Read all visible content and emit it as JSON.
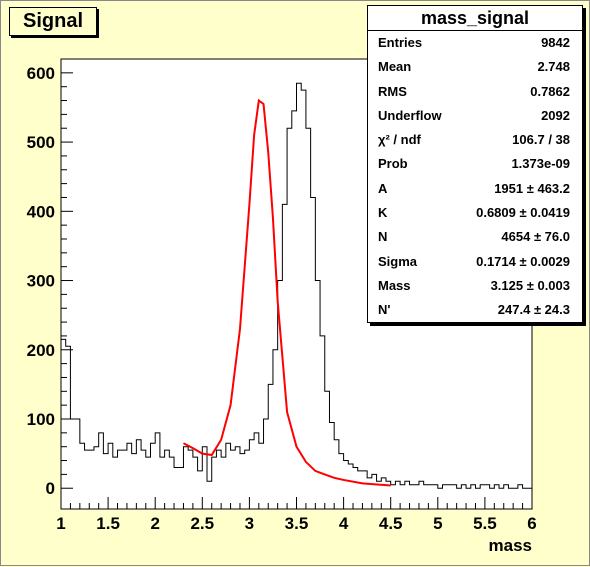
{
  "window": {
    "title": "Signal"
  },
  "chart_data": {
    "type": "histogram",
    "xlabel": "mass",
    "ylabel": "",
    "xlim": [
      1,
      6
    ],
    "ylim": [
      -30,
      620
    ],
    "x_ticks": [
      "1",
      "1.5",
      "2",
      "2.5",
      "3",
      "3.5",
      "4",
      "4.5",
      "5",
      "5.5",
      "6"
    ],
    "y_ticks": [
      "0",
      "100",
      "200",
      "300",
      "400",
      "500",
      "600"
    ],
    "bin_width": 0.05,
    "histogram_counts": [
      215,
      205,
      100,
      100,
      65,
      55,
      55,
      60,
      80,
      50,
      65,
      45,
      55,
      55,
      65,
      50,
      70,
      55,
      45,
      65,
      80,
      45,
      55,
      45,
      30,
      30,
      60,
      55,
      45,
      25,
      60,
      10,
      45,
      55,
      45,
      65,
      55,
      60,
      50,
      55,
      70,
      80,
      65,
      100,
      150,
      200,
      300,
      410,
      520,
      545,
      585,
      575,
      520,
      420,
      300,
      220,
      140,
      95,
      70,
      50,
      40,
      35,
      30,
      25,
      25,
      15,
      20,
      10,
      15,
      10,
      5,
      10,
      5,
      10,
      5,
      5,
      10,
      5,
      5,
      5,
      0,
      5,
      5,
      5,
      0,
      5,
      0,
      5,
      0,
      5,
      5,
      0,
      5,
      0,
      5,
      0,
      0,
      5,
      0,
      0
    ],
    "fit_curve": {
      "name": "fit",
      "color": "#ff0000",
      "x": [
        2.3,
        2.4,
        2.5,
        2.6,
        2.7,
        2.8,
        2.9,
        3.0,
        3.05,
        3.1,
        3.15,
        3.2,
        3.25,
        3.3,
        3.4,
        3.5,
        3.6,
        3.7,
        3.8,
        3.9,
        4.0,
        4.2,
        4.5
      ],
      "y": [
        65,
        58,
        50,
        48,
        70,
        120,
        230,
        410,
        510,
        560,
        555,
        485,
        390,
        270,
        110,
        60,
        38,
        25,
        20,
        15,
        12,
        7,
        4
      ]
    }
  },
  "stats": {
    "title": "mass_signal",
    "rows": [
      {
        "label": "Entries",
        "value": "9842"
      },
      {
        "label": "Mean",
        "value": "2.748"
      },
      {
        "label": "RMS",
        "value": "0.7862"
      },
      {
        "label": "Underflow",
        "value": "2092"
      },
      {
        "label": "χ² / ndf",
        "value": "106.7 / 38"
      },
      {
        "label": "Prob",
        "value": "1.373e-09"
      },
      {
        "label": "A",
        "value": "1951 ± 463.2"
      },
      {
        "label": "K",
        "value": "0.6809 ± 0.0419"
      },
      {
        "label": "N",
        "value": "4654 ± 76.0"
      },
      {
        "label": "Sigma",
        "value": "0.1714 ± 0.0029"
      },
      {
        "label": "Mass",
        "value": "3.125 ± 0.003"
      },
      {
        "label": "N'",
        "value": "247.4 ± 24.3"
      }
    ]
  }
}
